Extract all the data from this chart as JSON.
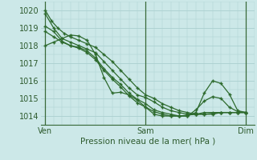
{
  "xlabel": "Pression niveau de la mer( hPa )",
  "xtick_labels": [
    "Ven",
    "Sam",
    "Dim"
  ],
  "xtick_positions": [
    0,
    48,
    96
  ],
  "ylim": [
    1013.5,
    1020.5
  ],
  "yticks": [
    1014,
    1015,
    1016,
    1017,
    1018,
    1019,
    1020
  ],
  "xlim": [
    -2,
    100
  ],
  "bg_color": "#cce8e8",
  "grid_color": "#aacfcf",
  "line_color": "#2d6a2d",
  "marker": "+",
  "lines": [
    [
      0,
      1020.0,
      3,
      1019.4,
      6,
      1019.0,
      9,
      1018.7,
      12,
      1018.5,
      16,
      1018.3,
      20,
      1018.1,
      24,
      1017.9,
      28,
      1017.5,
      32,
      1017.1,
      36,
      1016.6,
      40,
      1016.1,
      44,
      1015.6,
      48,
      1015.2,
      52,
      1015.0,
      56,
      1014.7,
      60,
      1014.5,
      64,
      1014.3,
      68,
      1014.2,
      72,
      1014.1,
      76,
      1014.1,
      80,
      1014.1,
      84,
      1014.2,
      88,
      1014.2,
      92,
      1014.2,
      96,
      1014.2
    ],
    [
      0,
      1019.8,
      4,
      1019.0,
      8,
      1018.4,
      12,
      1018.2,
      16,
      1018.0,
      20,
      1017.8,
      24,
      1017.6,
      28,
      1017.1,
      32,
      1016.6,
      36,
      1016.1,
      40,
      1015.6,
      44,
      1015.2,
      48,
      1015.05,
      52,
      1014.8,
      56,
      1014.5,
      60,
      1014.3,
      64,
      1014.2,
      68,
      1014.1,
      72,
      1014.1,
      76,
      1014.1,
      80,
      1014.15,
      84,
      1014.2,
      88,
      1014.2,
      92,
      1014.2,
      96,
      1014.2
    ],
    [
      0,
      1018.0,
      4,
      1018.2,
      8,
      1018.4,
      12,
      1018.6,
      16,
      1018.55,
      20,
      1018.3,
      24,
      1017.5,
      28,
      1016.2,
      32,
      1015.3,
      36,
      1015.35,
      40,
      1015.2,
      44,
      1014.9,
      48,
      1014.5,
      52,
      1014.1,
      56,
      1014.0,
      60,
      1014.0,
      64,
      1014.0,
      68,
      1014.05,
      72,
      1014.1,
      76,
      1014.2,
      80,
      1014.2,
      84,
      1014.2,
      88,
      1014.2,
      92,
      1014.2,
      96,
      1014.2
    ],
    [
      0,
      1018.8,
      4,
      1018.5,
      8,
      1018.2,
      12,
      1018.0,
      16,
      1017.9,
      20,
      1017.7,
      24,
      1017.3,
      28,
      1016.7,
      32,
      1016.2,
      36,
      1015.8,
      40,
      1015.3,
      44,
      1014.95,
      48,
      1014.7,
      52,
      1014.35,
      56,
      1014.2,
      60,
      1014.1,
      64,
      1014.0,
      68,
      1014.0,
      72,
      1014.2,
      76,
      1015.3,
      80,
      1016.0,
      84,
      1015.85,
      88,
      1015.25,
      92,
      1014.3,
      96,
      1014.2
    ],
    [
      0,
      1019.1,
      4,
      1018.8,
      8,
      1018.25,
      12,
      1018.0,
      16,
      1017.85,
      20,
      1017.6,
      24,
      1017.2,
      28,
      1016.6,
      32,
      1016.1,
      36,
      1015.65,
      40,
      1015.15,
      44,
      1014.75,
      48,
      1014.5,
      52,
      1014.25,
      56,
      1014.1,
      60,
      1014.0,
      64,
      1014.0,
      68,
      1014.0,
      72,
      1014.35,
      76,
      1014.85,
      80,
      1015.1,
      84,
      1015.0,
      88,
      1014.5,
      92,
      1014.25,
      96,
      1014.2
    ]
  ]
}
